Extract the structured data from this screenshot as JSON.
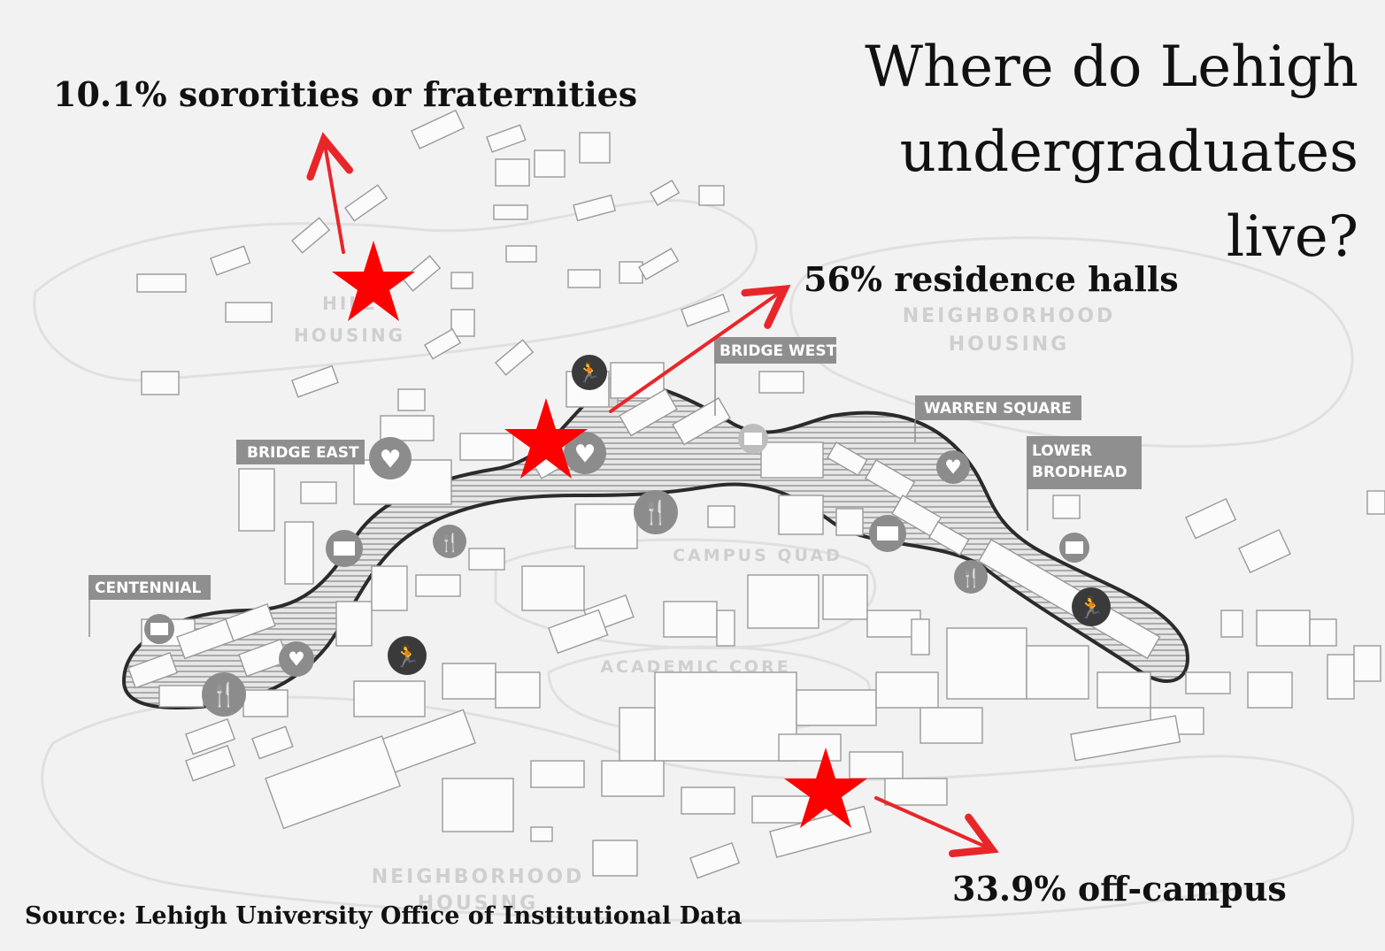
{
  "title_lines": [
    "Where do Lehigh",
    "undergraduates",
    "live?"
  ],
  "stats": {
    "greek": "10.1% sororities or fraternities",
    "residence": "56% residence halls",
    "offcampus": "33.9% off-campus"
  },
  "source": "Source: Lehigh University Office of Institutional Data",
  "map_labels": {
    "bridge_west": "BRIDGE WEST",
    "bridge_east": "BRIDGE EAST",
    "warren_square": "WARREN SQUARE",
    "lower_brodhead_1": "LOWER",
    "lower_brodhead_2": "BRODHEAD",
    "centennial": "CENTENNIAL"
  },
  "zone_labels": {
    "hill_housing_1": "HILL",
    "hill_housing_2": "HOUSING",
    "neighborhood_ne_1": "NEIGHBORHOOD",
    "neighborhood_ne_2": "HOUSING",
    "campus_quad": "CAMPUS QUAD",
    "academic_core": "ACADEMIC CORE",
    "neighborhood_s_1": "NEIGHBORHOOD",
    "neighborhood_s_2": "HOUSING"
  },
  "colors": {
    "star": "#ff0000",
    "arrow": "#e8262a",
    "label_box": "#8f8f8f",
    "path_band": "#7a7a7a",
    "icon_bg": "#8c8c8c",
    "icon_dark": "#3a3a3a"
  },
  "icons": [
    "heart-icon",
    "fork-knife-icon",
    "book-icon",
    "runner-icon",
    "star-marker"
  ]
}
